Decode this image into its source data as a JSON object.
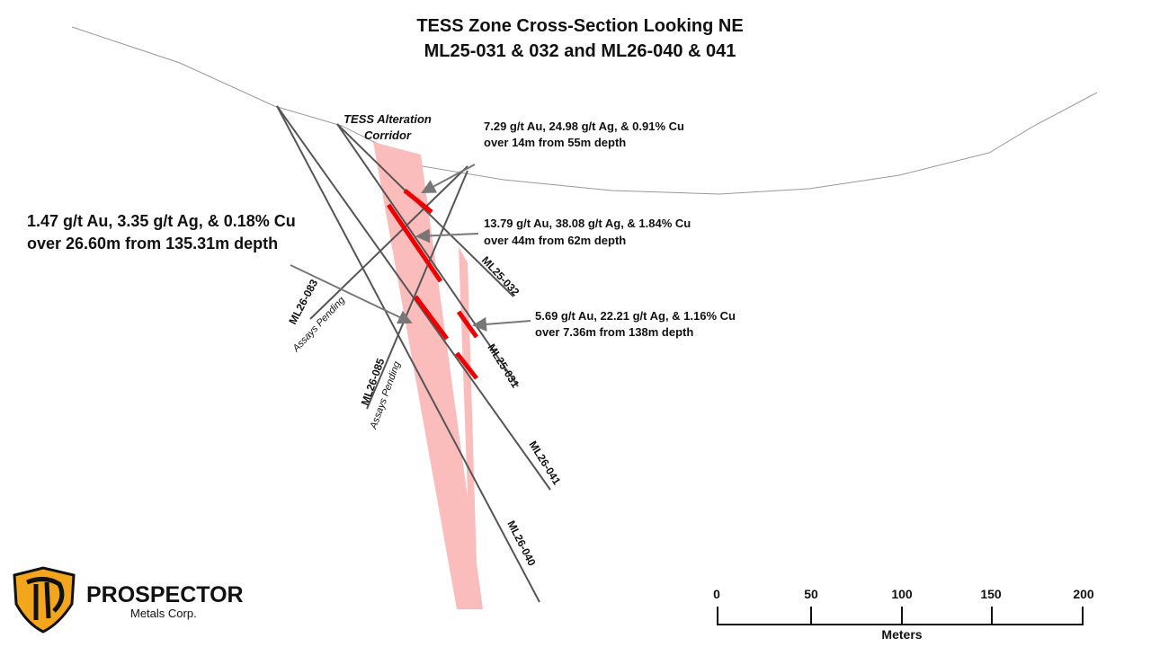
{
  "title": [
    "TESS Zone Cross-Section Looking NE",
    "ML25-031 & 032 and ML26-040 & 041"
  ],
  "corridor_label": [
    "TESS Alteration",
    "Corridor"
  ],
  "intercepts": [
    {
      "lines": [
        "7.29 g/t Au, 24.98 g/t Ag, & 0.91% Cu",
        "over 14m from 55m depth"
      ]
    },
    {
      "lines": [
        "13.79 g/t Au, 38.08 g/t Ag, & 1.84% Cu",
        "over 44m from 62m depth"
      ]
    },
    {
      "lines": [
        "5.69 g/t Au, 22.21 g/t Ag, & 1.16% Cu",
        "over 7.36m from 138m depth"
      ]
    },
    {
      "lines": [
        "1.47 g/t Au, 3.35 g/t Ag, & 0.18% Cu",
        "over 26.60m from 135.31m depth"
      ]
    }
  ],
  "holes": [
    {
      "name": "ML25-032"
    },
    {
      "name": "ML25-031"
    },
    {
      "name": "ML26-041"
    },
    {
      "name": "ML26-040"
    },
    {
      "name": "ML26-083",
      "note": "Assays Pending"
    },
    {
      "name": "ML26-085",
      "note": "Assays Pending"
    }
  ],
  "scale_bar": {
    "ticks": [
      0,
      50,
      100,
      150,
      200
    ],
    "unit": "Meters"
  },
  "logo": {
    "name": "PROSPECTOR",
    "sub": "Metals Corp."
  }
}
